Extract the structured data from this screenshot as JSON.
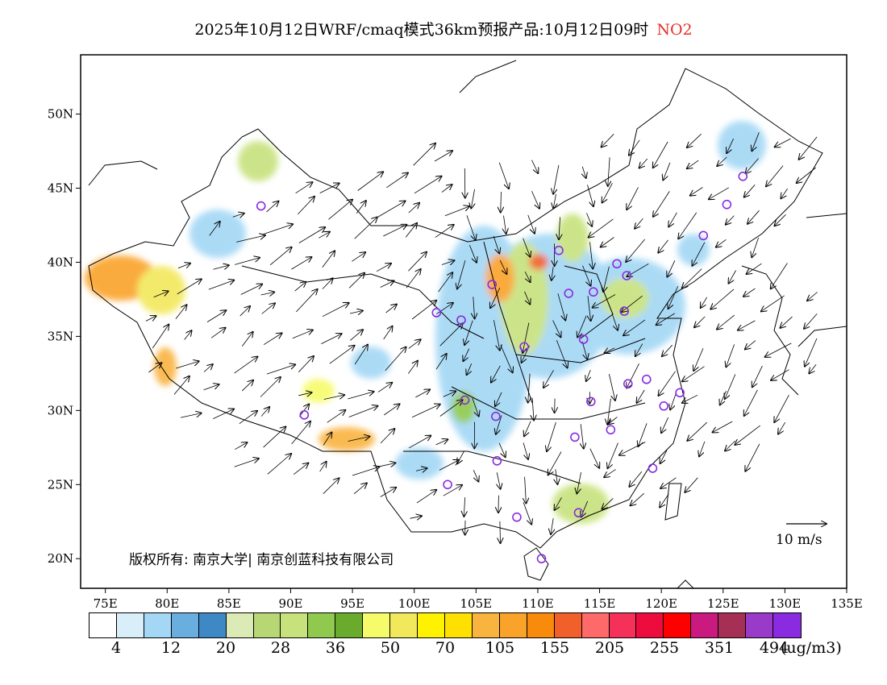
{
  "title": {
    "main": "2025年10月12日WRF/cmaq模式36km预报产品:10月12日09时",
    "species": "NO2"
  },
  "species_color": "#e8302a",
  "axes": {
    "lat_labels": [
      "50N",
      "45N",
      "40N",
      "35N",
      "30N",
      "25N",
      "20N"
    ],
    "lat_values": [
      50,
      45,
      40,
      35,
      30,
      25,
      20
    ],
    "lon_labels": [
      "75E",
      "80E",
      "85E",
      "90E",
      "95E",
      "100E",
      "105E",
      "110E",
      "115E",
      "120E",
      "125E",
      "130E",
      "135E"
    ],
    "lon_values": [
      75,
      80,
      85,
      90,
      95,
      100,
      105,
      110,
      115,
      120,
      125,
      130,
      135
    ],
    "lon_range": [
      73,
      135
    ],
    "lat_range": [
      18,
      54
    ]
  },
  "colorbar": {
    "colors": [
      "#ffffff",
      "#d8effa",
      "#a3d7f5",
      "#6aaee0",
      "#3e88c5",
      "#dcebb6",
      "#b7d775",
      "#c7e27d",
      "#8fc94d",
      "#6aab2e",
      "#f6fb6a",
      "#f2e85b",
      "#fff200",
      "#ffe000",
      "#f9b33f",
      "#faa32b",
      "#f88a0c",
      "#f15f2a",
      "#fe6a6a",
      "#f53159",
      "#ee0b3e",
      "#ff0000",
      "#cb1a7f",
      "#a52f55",
      "#9a3ac8",
      "#8a2be2"
    ],
    "labels": [
      "4",
      "12",
      "20",
      "28",
      "36",
      "50",
      "70",
      "105",
      "155",
      "205",
      "255",
      "351",
      "494"
    ],
    "unit": "(ug/m3)"
  },
  "copyright": "版权所有: 南京大学| 南京创蓝科技有限公司",
  "wind_scale_label": "10 m/s",
  "stations": [
    {
      "lon": 87.6,
      "lat": 43.8
    },
    {
      "lon": 91.1,
      "lat": 29.7
    },
    {
      "lon": 101.8,
      "lat": 36.6
    },
    {
      "lon": 103.8,
      "lat": 36.1
    },
    {
      "lon": 106.3,
      "lat": 38.5
    },
    {
      "lon": 104.1,
      "lat": 30.7
    },
    {
      "lon": 102.7,
      "lat": 25.0
    },
    {
      "lon": 106.6,
      "lat": 29.6
    },
    {
      "lon": 106.7,
      "lat": 26.6
    },
    {
      "lon": 108.3,
      "lat": 22.8
    },
    {
      "lon": 110.3,
      "lat": 20.0
    },
    {
      "lon": 108.9,
      "lat": 34.3
    },
    {
      "lon": 111.7,
      "lat": 40.8
    },
    {
      "lon": 112.5,
      "lat": 37.9
    },
    {
      "lon": 113.7,
      "lat": 34.8
    },
    {
      "lon": 114.3,
      "lat": 30.6
    },
    {
      "lon": 113.0,
      "lat": 28.2
    },
    {
      "lon": 113.3,
      "lat": 23.1
    },
    {
      "lon": 114.5,
      "lat": 38.0
    },
    {
      "lon": 116.4,
      "lat": 39.9
    },
    {
      "lon": 117.2,
      "lat": 39.1
    },
    {
      "lon": 117.0,
      "lat": 36.7
    },
    {
      "lon": 117.3,
      "lat": 31.8
    },
    {
      "lon": 118.8,
      "lat": 32.1
    },
    {
      "lon": 120.2,
      "lat": 30.3
    },
    {
      "lon": 121.5,
      "lat": 31.2
    },
    {
      "lon": 115.9,
      "lat": 28.7
    },
    {
      "lon": 119.3,
      "lat": 26.1
    },
    {
      "lon": 123.4,
      "lat": 41.8
    },
    {
      "lon": 125.3,
      "lat": 43.9
    },
    {
      "lon": 126.6,
      "lat": 45.8
    }
  ]
}
